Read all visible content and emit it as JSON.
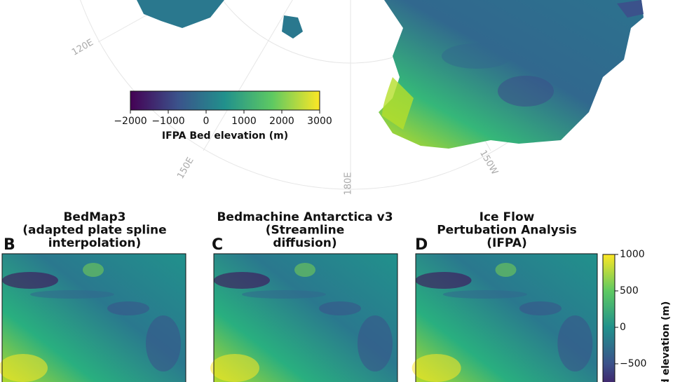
{
  "overview_map": {
    "longitude_labels": [
      "120E",
      "150E",
      "180E",
      "150W"
    ],
    "colorbar": {
      "label": "IFPA Bed elevation (m)",
      "lim": [
        -2000,
        3000
      ],
      "ticks": [
        {
          "value": -2000,
          "label": "−2000"
        },
        {
          "value": -1000,
          "label": "−1000"
        },
        0,
        1000,
        2000,
        3000
      ]
    }
  },
  "panels": [
    {
      "letter": "B",
      "title": [
        "BedMap3",
        "(adapted plate spline",
        "interpolation)"
      ]
    },
    {
      "letter": "C",
      "title": [
        "Bedmachine Antarctica v3",
        "(Streamline",
        "diffusion)"
      ]
    },
    {
      "letter": "D",
      "title": [
        "Ice Flow",
        "Pertubation Analysis",
        "(IFPA)"
      ]
    }
  ],
  "panel_colorbar": {
    "label": "d elevation (m)",
    "lim": [
      -1000,
      1000
    ],
    "ticks": [
      1000,
      500,
      0,
      {
        "value": -500,
        "label": "−500"
      }
    ]
  }
}
